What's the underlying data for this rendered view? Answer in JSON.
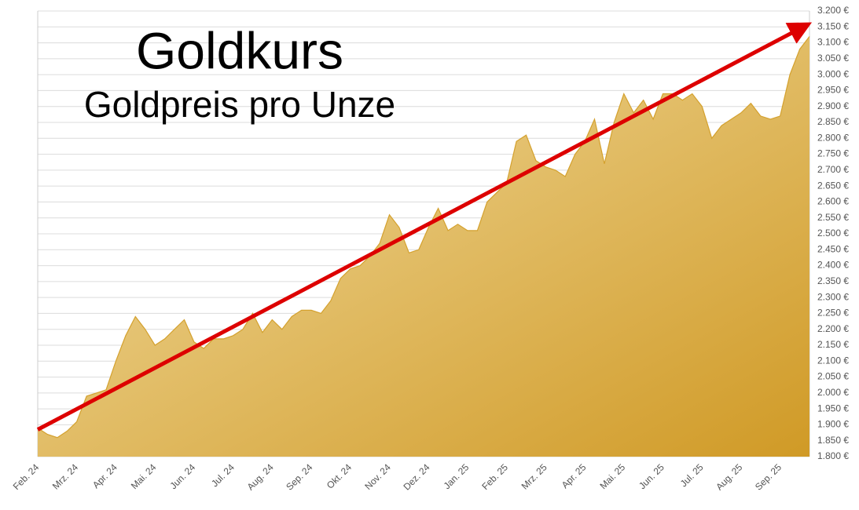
{
  "chart_data": {
    "type": "area",
    "title": "Goldkurs",
    "subtitle": "Goldpreis pro Unze",
    "x": [
      "Feb. 24",
      "Feb. 24",
      "Feb. 24",
      "Feb. 24",
      "Mrz. 24",
      "Mrz. 24",
      "Mrz. 24",
      "Mrz. 24",
      "Apr. 24",
      "Apr. 24",
      "Apr. 24",
      "Apr. 24",
      "Mai. 24",
      "Mai. 24",
      "Mai. 24",
      "Mai. 24",
      "Jun. 24",
      "Jun. 24",
      "Jun. 24",
      "Jun. 24",
      "Jul. 24",
      "Jul. 24",
      "Jul. 24",
      "Jul. 24",
      "Aug. 24",
      "Aug. 24",
      "Aug. 24",
      "Aug. 24",
      "Sep. 24",
      "Sep. 24",
      "Sep. 24",
      "Sep. 24",
      "Okt. 24",
      "Okt. 24",
      "Okt. 24",
      "Okt. 24",
      "Nov. 24",
      "Nov. 24",
      "Nov. 24",
      "Nov. 24",
      "Dez. 24",
      "Dez. 24",
      "Dez. 24",
      "Dez. 24",
      "Jan. 25",
      "Jan. 25",
      "Jan. 25",
      "Jan. 25",
      "Feb. 25",
      "Feb. 25",
      "Feb. 25",
      "Feb. 25",
      "Mrz. 25",
      "Mrz. 25",
      "Mrz. 25",
      "Mrz. 25",
      "Apr. 25",
      "Apr. 25",
      "Apr. 25",
      "Apr. 25",
      "Mai. 25",
      "Mai. 25",
      "Mai. 25",
      "Mai. 25",
      "Jun. 25",
      "Jun. 25",
      "Jun. 25",
      "Jun. 25",
      "Jul. 25",
      "Jul. 25",
      "Jul. 25",
      "Jul. 25",
      "Aug. 25",
      "Aug. 25",
      "Aug. 25",
      "Aug. 25",
      "Sep. 25",
      "Sep. 25",
      "Sep. 25",
      "Sep. 25"
    ],
    "values": [
      1890,
      1870,
      1860,
      1880,
      1910,
      1990,
      2000,
      2010,
      2100,
      2180,
      2240,
      2200,
      2150,
      2170,
      2200,
      2230,
      2160,
      2140,
      2170,
      2170,
      2180,
      2200,
      2250,
      2190,
      2230,
      2200,
      2240,
      2260,
      2260,
      2250,
      2290,
      2360,
      2390,
      2400,
      2430,
      2470,
      2560,
      2520,
      2440,
      2450,
      2520,
      2580,
      2510,
      2530,
      2510,
      2510,
      2600,
      2630,
      2660,
      2790,
      2810,
      2730,
      2710,
      2700,
      2680,
      2750,
      2790,
      2860,
      2720,
      2850,
      2940,
      2880,
      2920,
      2860,
      2940,
      2940,
      2920,
      2940,
      2900,
      2800,
      2840,
      2860,
      2880,
      2910,
      2870,
      2860,
      2870,
      3000,
      3080,
      3120
    ],
    "color": "#d4a12e",
    "ylim": [
      1800,
      3200
    ],
    "yticks": [
      {
        "value": 1800,
        "label": "1.800 €"
      },
      {
        "value": 1850,
        "label": "1.850 €"
      },
      {
        "value": 1900,
        "label": "1.900 €"
      },
      {
        "value": 1950,
        "label": "1.950 €"
      },
      {
        "value": 2000,
        "label": "2.000 €"
      },
      {
        "value": 2050,
        "label": "2.050 €"
      },
      {
        "value": 2100,
        "label": "2.100 €"
      },
      {
        "value": 2150,
        "label": "2.150 €"
      },
      {
        "value": 2200,
        "label": "2.200 €"
      },
      {
        "value": 2250,
        "label": "2.250 €"
      },
      {
        "value": 2300,
        "label": "2.300 €"
      },
      {
        "value": 2350,
        "label": "2.350 €"
      },
      {
        "value": 2400,
        "label": "2.400 €"
      },
      {
        "value": 2450,
        "label": "2.450 €"
      },
      {
        "value": 2500,
        "label": "2.500 €"
      },
      {
        "value": 2550,
        "label": "2.550 €"
      },
      {
        "value": 2600,
        "label": "2.600 €"
      },
      {
        "value": 2650,
        "label": "2.650 €"
      },
      {
        "value": 2700,
        "label": "2.700 €"
      },
      {
        "value": 2750,
        "label": "2.750 €"
      },
      {
        "value": 2800,
        "label": "2.800 €"
      },
      {
        "value": 2850,
        "label": "2.850 €"
      },
      {
        "value": 2900,
        "label": "2.900 €"
      },
      {
        "value": 2950,
        "label": "2.950 €"
      },
      {
        "value": 3000,
        "label": "3.000 €"
      },
      {
        "value": 3050,
        "label": "3.050 €"
      },
      {
        "value": 3100,
        "label": "3.100 €"
      },
      {
        "value": 3150,
        "label": "3.150 €"
      },
      {
        "value": 3200,
        "label": "3.200 €"
      }
    ],
    "grid": true,
    "trend": {
      "start": 1885,
      "end": 3150,
      "color": "#dd0000"
    }
  }
}
